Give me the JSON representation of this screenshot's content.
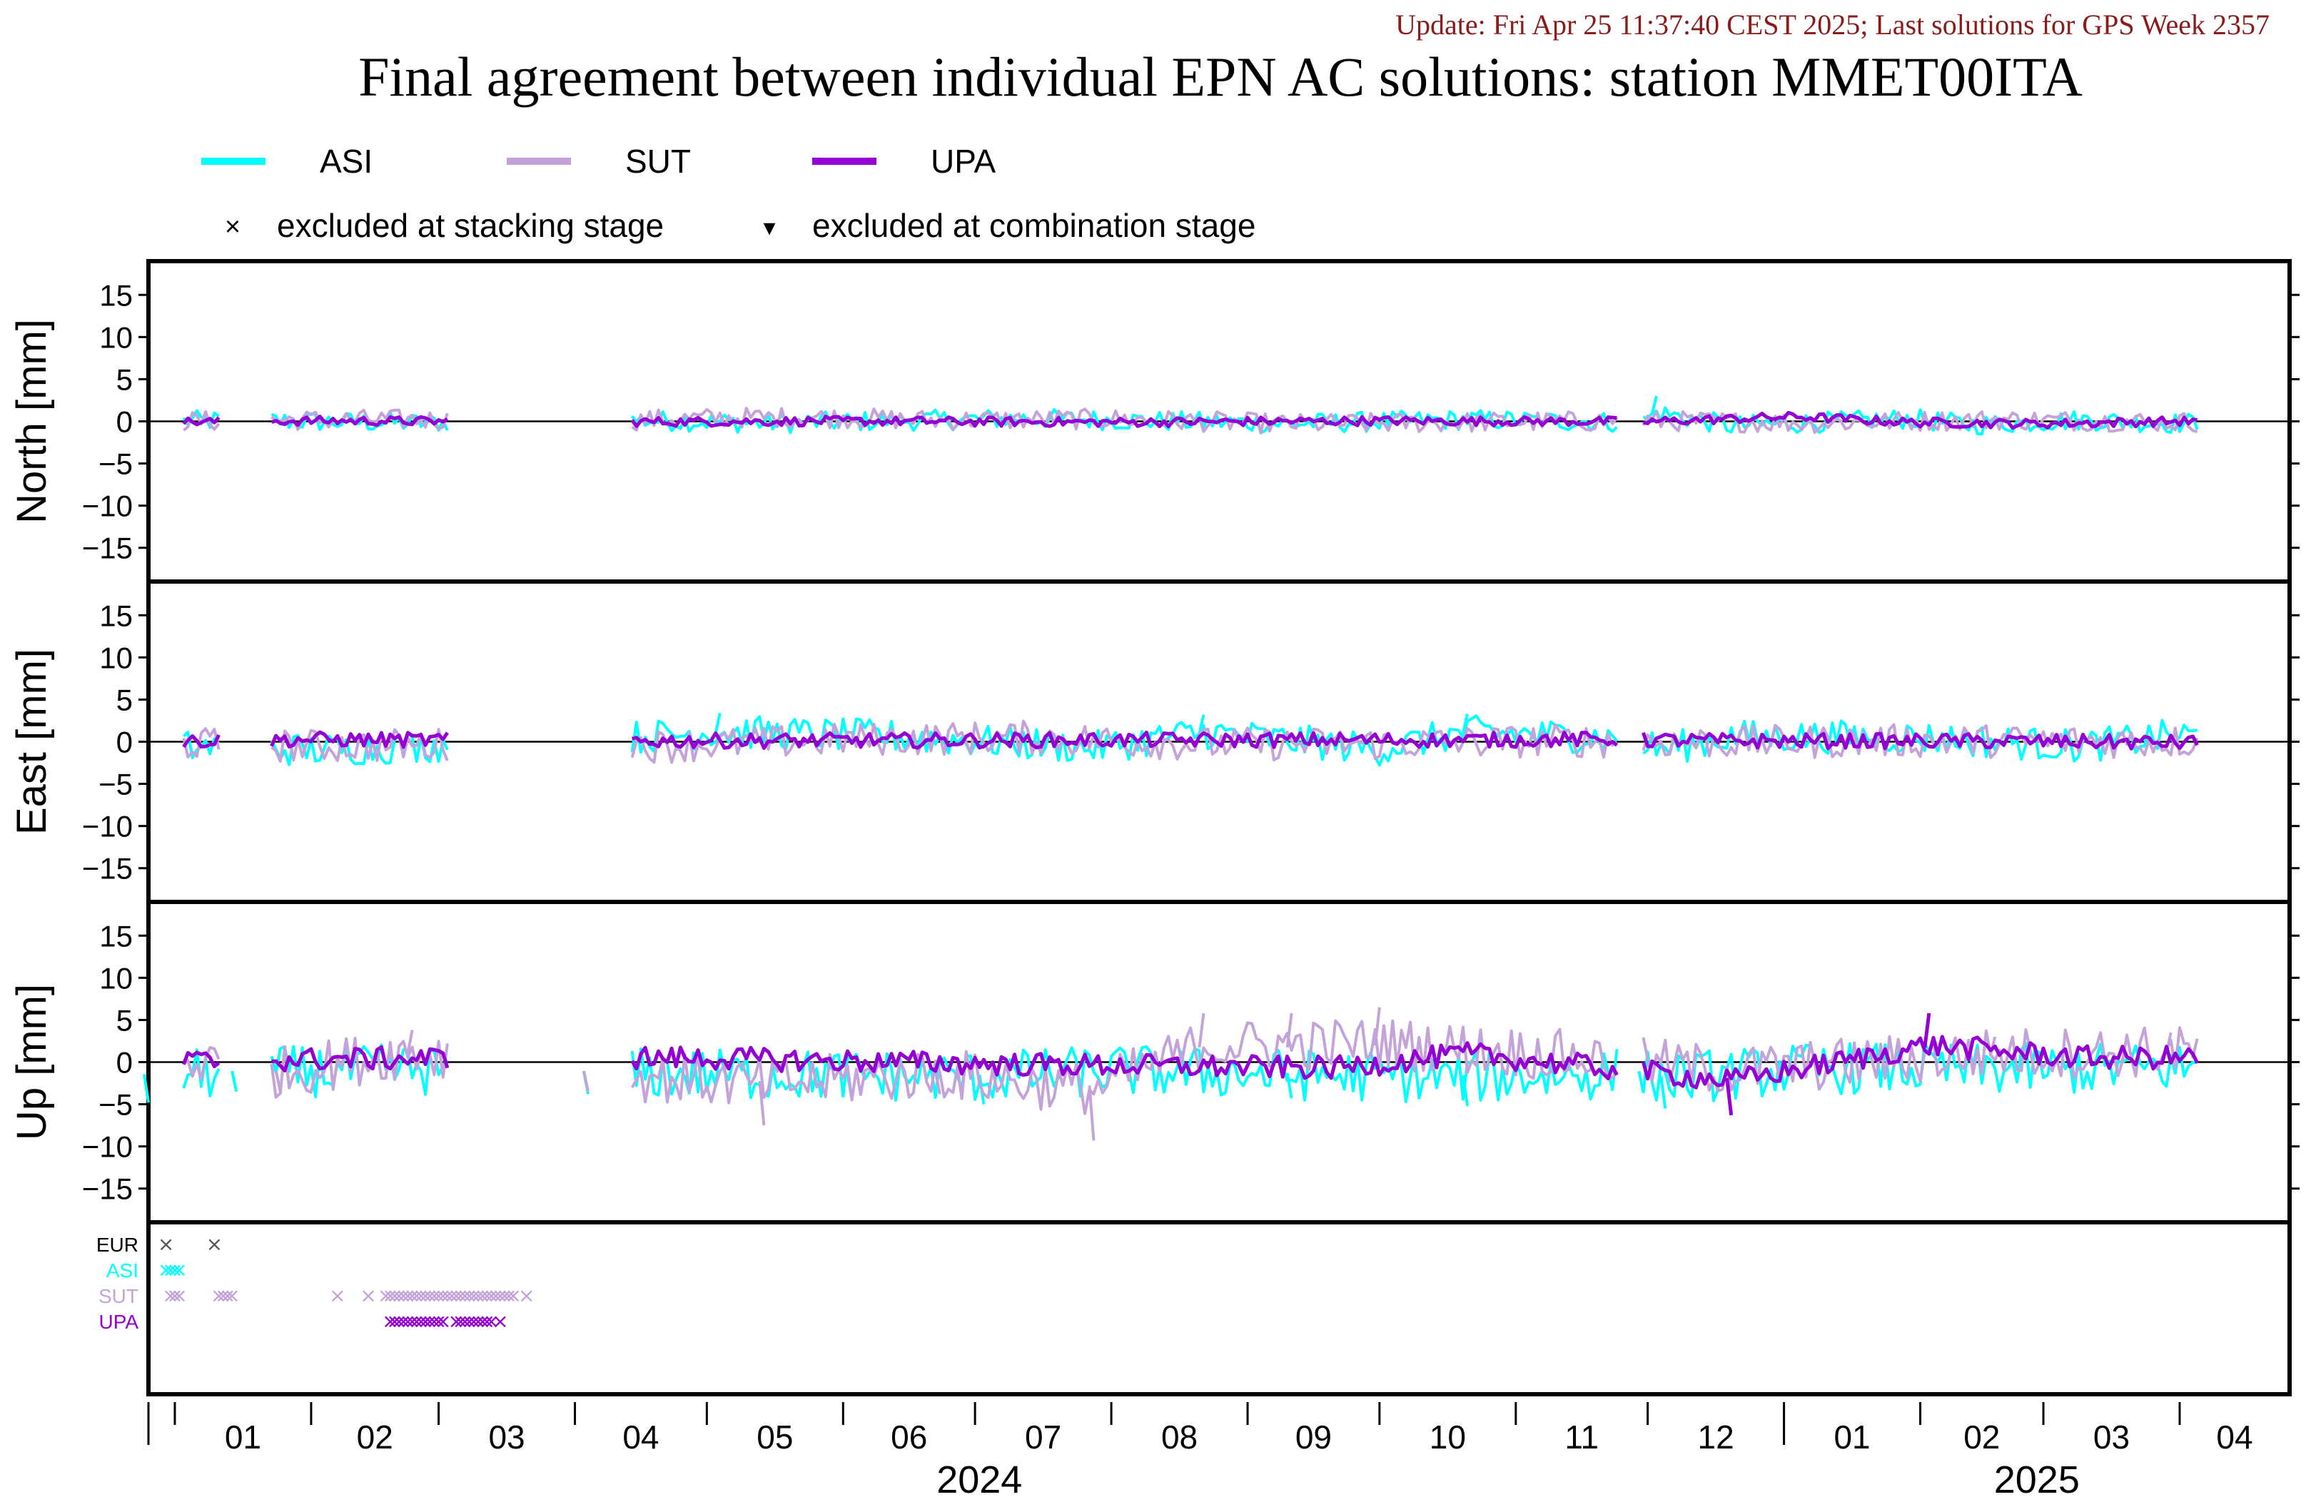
{
  "update_text": "Update: Fri Apr 25 11:37:40 CEST 2025; Last solutions for GPS Week 2357",
  "title": "Final agreement between individual EPN AC solutions: station MMET00ITA",
  "legend": {
    "series": [
      {
        "name": "ASI",
        "color": "#00ffff"
      },
      {
        "name": "SUT",
        "color": "#c3a3d9"
      },
      {
        "name": "UPA",
        "color": "#9400d3"
      }
    ],
    "markers": [
      {
        "symbol": "×",
        "label": "excluded at stacking stage"
      },
      {
        "symbol": "▾",
        "label": "excluded at combination stage"
      }
    ]
  },
  "time_axis": {
    "month_labels": [
      "01",
      "02",
      "03",
      "04",
      "05",
      "06",
      "07",
      "08",
      "09",
      "10",
      "11",
      "12",
      "01",
      "02",
      "03",
      "04"
    ],
    "year_labels": [
      "2024",
      "2025"
    ]
  },
  "chart_data": [
    {
      "type": "line",
      "panel": "north",
      "ylabel": "North [mm]",
      "ylim": [
        -19,
        19
      ],
      "yticks": [
        15,
        10,
        5,
        0,
        -5,
        -10,
        -15
      ],
      "x_range": [
        "2023-12-26",
        "2025-04-26"
      ],
      "zero_line": true,
      "series": [
        {
          "name": "ASI",
          "values": [
            [
              0,
              0.0
            ],
            [
              20,
              0.3
            ],
            [
              60,
              -0.5
            ],
            [
              100,
              0.8
            ],
            [
              140,
              -0.6
            ],
            [
              200,
              1.0
            ],
            [
              260,
              -0.8
            ],
            [
              300,
              0.6
            ],
            [
              340,
              -0.4
            ],
            [
              343,
              3.0
            ],
            [
              360,
              -1.5
            ],
            [
              400,
              0.9
            ],
            [
              415,
              -1.2
            ],
            [
              440,
              0.5
            ],
            [
              460,
              -0.6
            ]
          ]
        },
        {
          "name": "SUT",
          "values": [
            [
              0,
              -0.2
            ],
            [
              30,
              0.5
            ],
            [
              60,
              0.6
            ],
            [
              100,
              0.0
            ],
            [
              130,
              1.2
            ],
            [
              150,
              1.4
            ],
            [
              180,
              0.4
            ],
            [
              220,
              0.8
            ],
            [
              260,
              -0.9
            ],
            [
              300,
              -0.3
            ],
            [
              340,
              0.2
            ],
            [
              380,
              -0.5
            ],
            [
              420,
              0.6
            ],
            [
              460,
              -0.2
            ]
          ]
        },
        {
          "name": "UPA",
          "values": [
            [
              0,
              -0.3
            ],
            [
              40,
              0.2
            ],
            [
              100,
              -0.2
            ],
            [
              160,
              0.1
            ],
            [
              220,
              -0.3
            ],
            [
              280,
              0.2
            ],
            [
              340,
              -0.1
            ],
            [
              375,
              1.6
            ],
            [
              400,
              -0.3
            ],
            [
              430,
              -0.8
            ],
            [
              460,
              0.0
            ]
          ]
        }
      ]
    },
    {
      "type": "line",
      "panel": "east",
      "ylabel": "East [mm]",
      "ylim": [
        -19,
        19
      ],
      "yticks": [
        15,
        10,
        5,
        0,
        -5,
        -10,
        -15
      ],
      "x_range": [
        "2023-12-26",
        "2025-04-26"
      ],
      "zero_line": true,
      "series": [
        {
          "name": "ASI",
          "values": [
            [
              0,
              -1.5
            ],
            [
              40,
              -2.8
            ],
            [
              110,
              1.5
            ],
            [
              130,
              3.4
            ],
            [
              170,
              1.8
            ],
            [
              215,
              -2.0
            ],
            [
              240,
              3.2
            ],
            [
              280,
              -2.5
            ],
            [
              300,
              3.3
            ],
            [
              330,
              1.6
            ],
            [
              345,
              -2.5
            ],
            [
              360,
              1.8
            ],
            [
              400,
              1.5
            ],
            [
              440,
              -1.5
            ],
            [
              460,
              2.0
            ]
          ]
        },
        {
          "name": "SUT",
          "values": [
            [
              0,
              -0.5
            ],
            [
              40,
              -1.5
            ],
            [
              80,
              -0.6
            ],
            [
              120,
              -1.4
            ],
            [
              160,
              0.8
            ],
            [
              200,
              1.5
            ],
            [
              240,
              -0.8
            ],
            [
              280,
              -0.6
            ],
            [
              320,
              0.4
            ],
            [
              360,
              -0.2
            ],
            [
              400,
              0.3
            ],
            [
              460,
              0.1
            ]
          ]
        },
        {
          "name": "UPA",
          "values": [
            [
              0,
              0.1
            ],
            [
              40,
              0.8
            ],
            [
              100,
              0.3
            ],
            [
              150,
              0.4
            ],
            [
              220,
              0.6
            ],
            [
              300,
              0.6
            ],
            [
              330,
              0.8
            ],
            [
              360,
              0.3
            ],
            [
              420,
              0.2
            ],
            [
              460,
              -0.3
            ]
          ]
        }
      ]
    },
    {
      "type": "line",
      "panel": "up",
      "ylabel": "Up [mm]",
      "ylim": [
        -19,
        19
      ],
      "yticks": [
        15,
        10,
        5,
        0,
        -5,
        -10,
        -15
      ],
      "x_range": [
        "2023-12-26",
        "2025-04-26"
      ],
      "zero_line": true,
      "series": [
        {
          "name": "ASI",
          "values": [
            [
              0,
              -4.8
            ],
            [
              20,
              -3.5
            ],
            [
              60,
              -2.5
            ],
            [
              100,
              -3.8
            ],
            [
              160,
              -4.5
            ],
            [
              190,
              -5.0
            ],
            [
              220,
              -2.8
            ],
            [
              260,
              -4.3
            ],
            [
              300,
              -5.2
            ],
            [
              340,
              -3.6
            ],
            [
              345,
              -5.5
            ],
            [
              380,
              -2.0
            ],
            [
              420,
              -2.5
            ],
            [
              460,
              -2.0
            ]
          ]
        },
        {
          "name": "SUT",
          "values": [
            [
              0,
              2.5
            ],
            [
              30,
              -3.5
            ],
            [
              60,
              3.8
            ],
            [
              100,
              -3.5
            ],
            [
              140,
              -7.5
            ],
            [
              180,
              -3.8
            ],
            [
              215,
              -9.3
            ],
            [
              240,
              5.8
            ],
            [
              260,
              5.8
            ],
            [
              280,
              6.5
            ],
            [
              320,
              2.5
            ],
            [
              360,
              -3.0
            ],
            [
              420,
              3.0
            ],
            [
              460,
              3.5
            ]
          ]
        },
        {
          "name": "UPA",
          "values": [
            [
              0,
              0.0
            ],
            [
              40,
              1.0
            ],
            [
              80,
              1.5
            ],
            [
              120,
              1.5
            ],
            [
              200,
              -0.8
            ],
            [
              270,
              -2.0
            ],
            [
              300,
              2.8
            ],
            [
              360,
              -6.3
            ],
            [
              390,
              1.5
            ],
            [
              405,
              5.8
            ],
            [
              440,
              1.5
            ],
            [
              460,
              1.5
            ]
          ]
        }
      ]
    }
  ],
  "exclusions": {
    "rows": [
      {
        "label": "EUR",
        "color": "#555555",
        "days": [
          4,
          15
        ]
      },
      {
        "label": "ASI",
        "color": "#00ffff",
        "days": [
          4,
          5,
          6,
          7
        ]
      },
      {
        "label": "SUT",
        "color": "#c3a3d9",
        "days": [
          5,
          6,
          7,
          16,
          17,
          18,
          19,
          43,
          50,
          54,
          55,
          56,
          57,
          58,
          59,
          60,
          61,
          62,
          63,
          64,
          65,
          66,
          67,
          68,
          69,
          70,
          71,
          72,
          73,
          74,
          75,
          76,
          77,
          78,
          79,
          80,
          81,
          82,
          83,
          86
        ]
      },
      {
        "label": "UPA",
        "color": "#9400d3",
        "days": [
          55,
          56,
          57,
          58,
          59,
          60,
          61,
          62,
          63,
          64,
          65,
          66,
          67,
          70,
          71,
          72,
          73,
          74,
          75,
          76,
          77,
          78,
          80
        ]
      }
    ]
  }
}
